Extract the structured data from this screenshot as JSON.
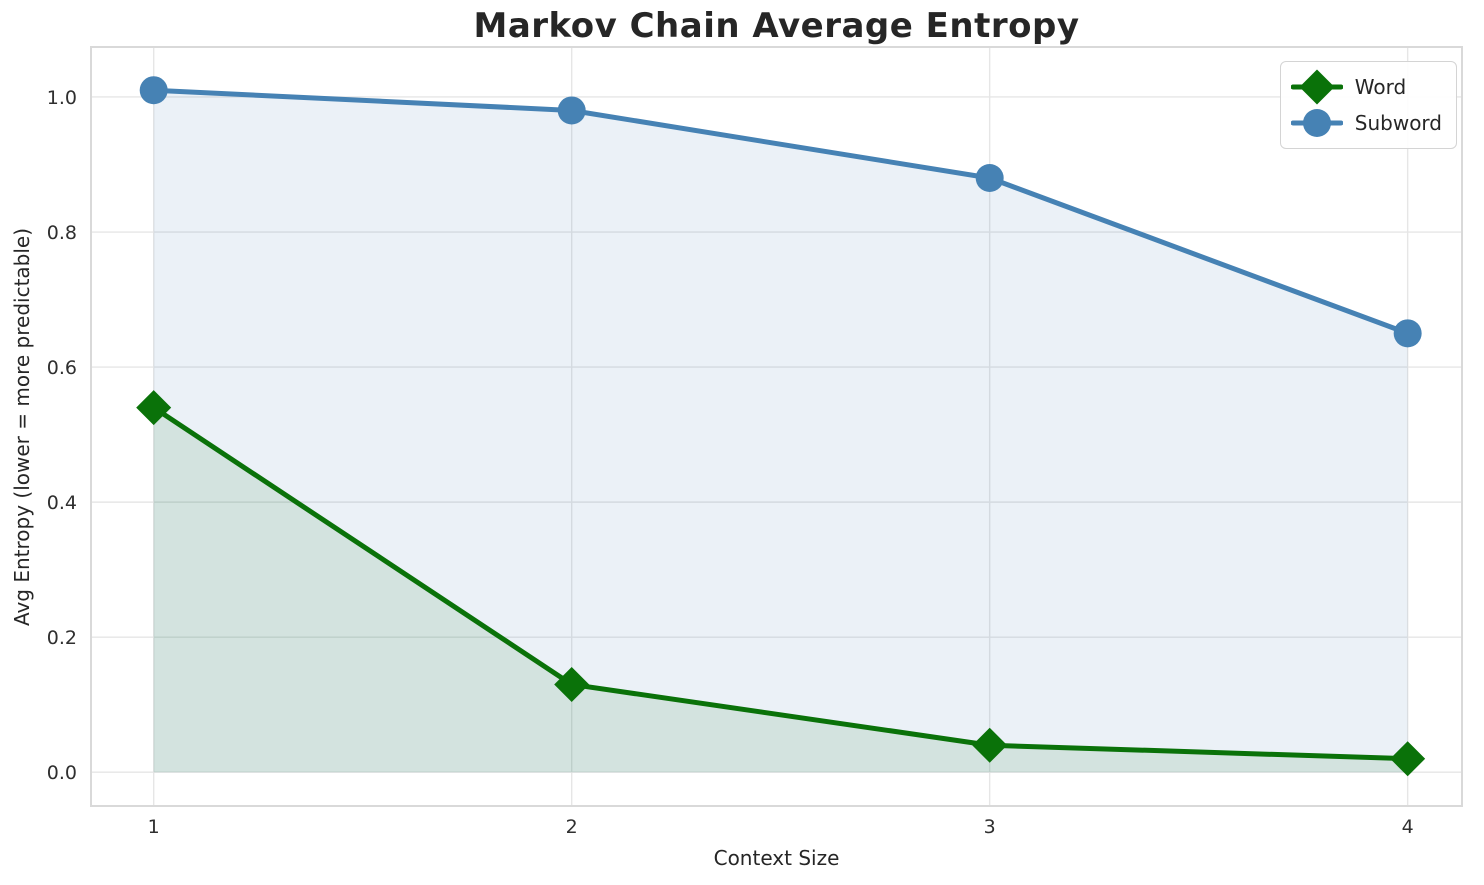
{
  "chart_data": {
    "type": "line",
    "title": "Markov Chain Average Entropy",
    "xlabel": "Context Size",
    "ylabel": "Avg Entropy (lower = more predictable)",
    "x": [
      1,
      2,
      3,
      4
    ],
    "series": [
      {
        "name": "Word",
        "values": [
          0.54,
          0.13,
          0.04,
          0.02
        ],
        "color": "#0a7209",
        "marker": "diamond",
        "fill": true,
        "fill_alpha": 0.11
      },
      {
        "name": "Subword",
        "values": [
          1.01,
          0.98,
          0.88,
          0.65
        ],
        "color": "#4682b4",
        "marker": "circle",
        "fill": true,
        "fill_alpha": 0.11
      }
    ],
    "xtick_labels": [
      "1",
      "2",
      "3",
      "4"
    ],
    "ytick_labels": [
      "0.0",
      "0.2",
      "0.4",
      "0.6",
      "0.8",
      "1.0"
    ],
    "xlim": [
      0.85,
      4.13
    ],
    "ylim": [
      -0.05,
      1.074
    ],
    "grid": true,
    "legend_position": "upper right",
    "fill_baseline": 0
  },
  "style": {
    "grid_color": "#e6e6e6",
    "spine_color": "#d9d9d9",
    "title_color": "#262626",
    "tick_color": "#2f2f2f",
    "line_width": 5
  }
}
